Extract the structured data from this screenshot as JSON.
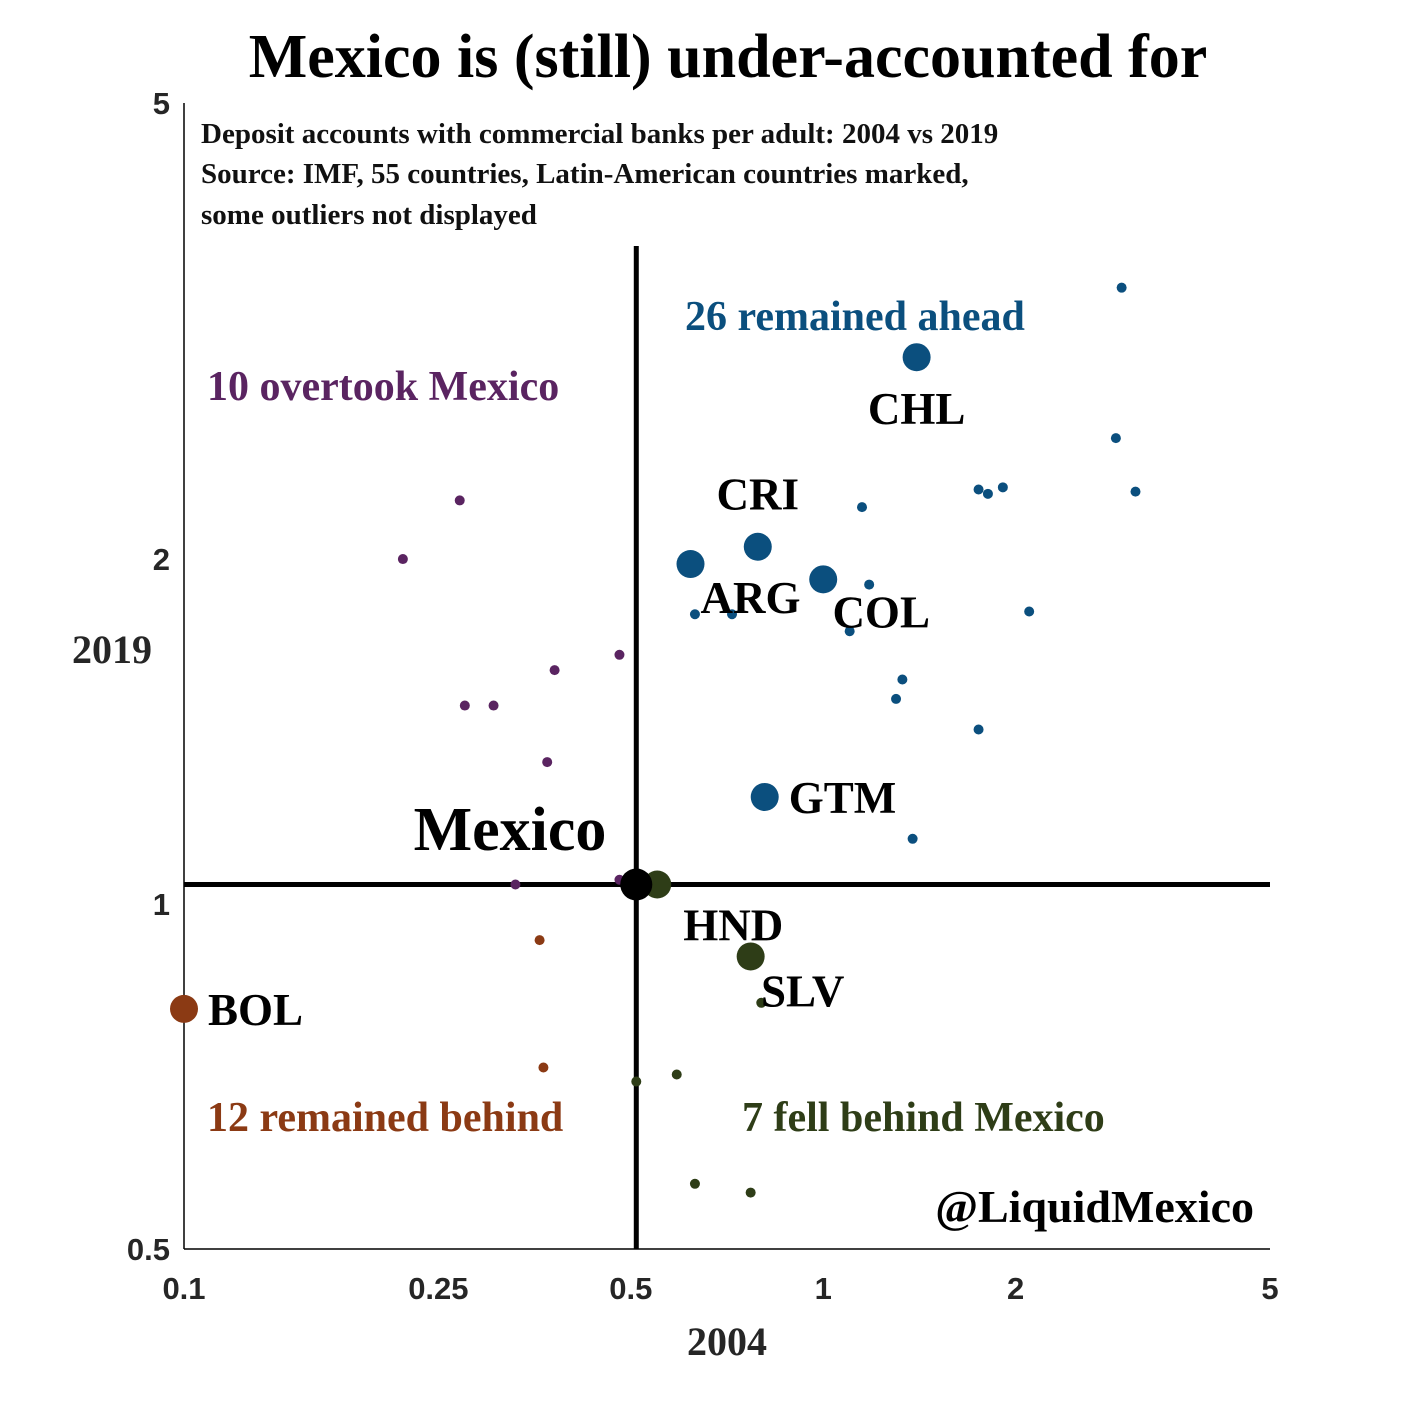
{
  "chart_data": {
    "type": "scatter",
    "title": "Mexico is (still) under-accounted for",
    "subtitle_lines": [
      "Deposit accounts with commercial banks per adult: 2004 vs 2019",
      "Source: IMF, 55 countries, Latin-American countries marked,",
      "some outliers not displayed"
    ],
    "xlabel": "2004",
    "ylabel": "2019",
    "x_scale": "log",
    "y_scale": "log",
    "xlim": [
      0.1,
      5
    ],
    "ylim": [
      0.5,
      5
    ],
    "x_ticks": [
      0.1,
      0.25,
      0.5,
      1,
      2,
      5
    ],
    "x_tick_labels": [
      "0.1",
      "0.25",
      "0.5",
      "1",
      "2",
      "5"
    ],
    "y_ticks": [
      0.5,
      1,
      2,
      5
    ],
    "y_tick_labels": [
      "0.5",
      "1",
      "2",
      "5"
    ],
    "reference": {
      "x": 0.51,
      "y": 1.04
    },
    "colors": {
      "ahead": "#0B4F7E",
      "overtook": "#5A2461",
      "behind": "#8B3A14",
      "fell": "#2E3D17",
      "mexico": "#000000",
      "axes": "#000000"
    },
    "quadrant_labels": {
      "ahead": "26 remained ahead",
      "overtook": "10 overtook Mexico",
      "behind": "12 remained behind",
      "fell": "7 fell behind Mexico"
    },
    "mexico": {
      "label": "Mexico",
      "x": 0.51,
      "y": 1.04
    },
    "series": [
      {
        "group": "ahead",
        "points": [
          {
            "x": 1.4,
            "y": 3.0,
            "label": "CHL"
          },
          {
            "x": 0.79,
            "y": 2.05,
            "label": "CRI"
          },
          {
            "x": 0.62,
            "y": 1.98,
            "label": "ARG"
          },
          {
            "x": 1.0,
            "y": 1.92,
            "label": "COL"
          },
          {
            "x": 0.81,
            "y": 1.24,
            "label": "GTM"
          },
          {
            "x": 2.93,
            "y": 3.45
          },
          {
            "x": 2.87,
            "y": 2.55
          },
          {
            "x": 3.08,
            "y": 2.29
          },
          {
            "x": 1.75,
            "y": 2.3
          },
          {
            "x": 1.81,
            "y": 2.28
          },
          {
            "x": 1.91,
            "y": 2.31
          },
          {
            "x": 1.15,
            "y": 2.22
          },
          {
            "x": 1.18,
            "y": 1.9
          },
          {
            "x": 1.1,
            "y": 1.73
          },
          {
            "x": 0.63,
            "y": 1.79
          },
          {
            "x": 0.72,
            "y": 1.79
          },
          {
            "x": 2.1,
            "y": 1.8
          },
          {
            "x": 1.33,
            "y": 1.57
          },
          {
            "x": 1.3,
            "y": 1.51
          },
          {
            "x": 1.75,
            "y": 1.42
          },
          {
            "x": 1.38,
            "y": 1.14
          }
        ]
      },
      {
        "group": "overtook",
        "points": [
          {
            "x": 0.27,
            "y": 2.25
          },
          {
            "x": 0.22,
            "y": 2.0
          },
          {
            "x": 0.48,
            "y": 1.65
          },
          {
            "x": 0.38,
            "y": 1.6
          },
          {
            "x": 0.275,
            "y": 1.49
          },
          {
            "x": 0.305,
            "y": 1.49
          },
          {
            "x": 0.37,
            "y": 1.33
          },
          {
            "x": 0.33,
            "y": 1.04
          },
          {
            "x": 0.48,
            "y": 1.05
          }
        ]
      },
      {
        "group": "behind",
        "points": [
          {
            "x": 0.1,
            "y": 0.81,
            "label": "BOL"
          },
          {
            "x": 0.36,
            "y": 0.93
          },
          {
            "x": 0.365,
            "y": 0.72
          }
        ]
      },
      {
        "group": "fell",
        "points": [
          {
            "x": 0.55,
            "y": 1.04,
            "label": "HND"
          },
          {
            "x": 0.77,
            "y": 0.9,
            "label": "SLV"
          },
          {
            "x": 0.8,
            "y": 0.82
          },
          {
            "x": 0.59,
            "y": 0.71
          },
          {
            "x": 0.51,
            "y": 0.7
          },
          {
            "x": 0.63,
            "y": 0.57
          },
          {
            "x": 0.77,
            "y": 0.56
          }
        ]
      }
    ],
    "watermark": "@LiquidMexico"
  }
}
